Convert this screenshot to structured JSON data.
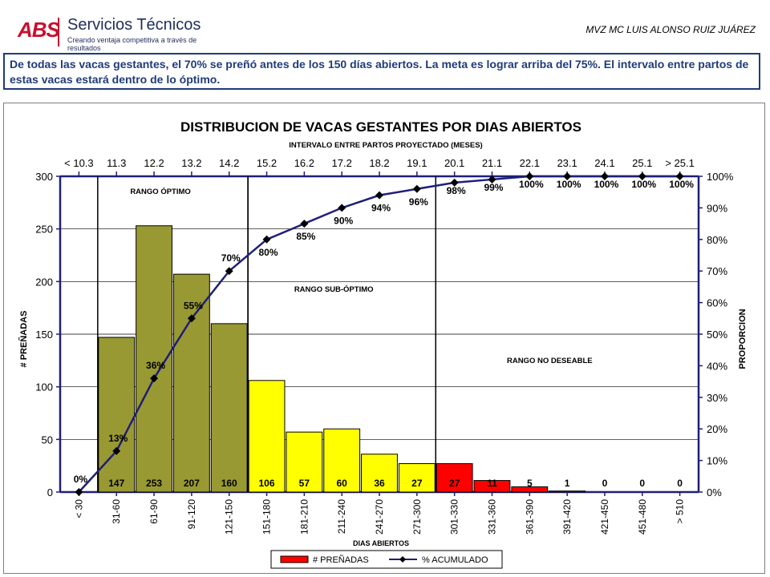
{
  "header": {
    "logo_abbr": "ABS",
    "logo_brand": "Servicios Técnicos",
    "logo_tagline": "Creando ventaja competitiva a través de resultados",
    "author": "MVZ MC LUIS ALONSO RUIZ JUÁREZ"
  },
  "note": "De todas las vacas gestantes, el 70% se preñó antes de los 150 días abiertos. La meta es lograr arriba del 75%. El intervalo entre partos de estas vacas estará dentro de lo óptimo.",
  "chart_data": {
    "type": "bar",
    "title": "DISTRIBUCION DE VACAS GESTANTES POR DIAS ABIERTOS",
    "subtitle": "INTERVALO ENTRE PARTOS PROYECTADO (MESES)",
    "xlabel": "DIAS ABIERTOS",
    "ylabel_left": "# PREÑADAS",
    "ylabel_right": "PROPORCION",
    "ylim_left": [
      0,
      300
    ],
    "yticks_left": [
      "0",
      "50",
      "100",
      "150",
      "200",
      "250",
      "300"
    ],
    "ylim_right": [
      0,
      1
    ],
    "yticks_right": [
      "0%",
      "10%",
      "20%",
      "30%",
      "40%",
      "50%",
      "60%",
      "70%",
      "80%",
      "90%",
      "100%"
    ],
    "categories": [
      "< 30",
      "31-60",
      "61-90",
      "91-120",
      "121-150",
      "151-180",
      "181-210",
      "211-240",
      "241-270",
      "271-300",
      "301-330",
      "331-360",
      "361-390",
      "391-420",
      "421-450",
      "451-480",
      "> 510"
    ],
    "months": [
      "< 10.3",
      "11.3",
      "12.2",
      "13.2",
      "14.2",
      "15.2",
      "16.2",
      "17.2",
      "18.2",
      "19.1",
      "20.1",
      "21.1",
      "22.1",
      "23.1",
      "24.1",
      "25.1",
      "> 25.1"
    ],
    "series": [
      {
        "name": "# PREÑADAS",
        "type": "bar",
        "values": [
          0,
          147,
          253,
          207,
          160,
          106,
          57,
          60,
          36,
          27,
          27,
          11,
          5,
          1,
          0,
          0,
          0
        ],
        "value_labels": [
          "",
          "147",
          "253",
          "207",
          "160",
          "106",
          "57",
          "60",
          "36",
          "27",
          "27",
          "11",
          "5",
          "1",
          "0",
          "0",
          "0"
        ],
        "colors": [
          "#999933",
          "#999933",
          "#999933",
          "#999933",
          "#999933",
          "#ffff00",
          "#ffff00",
          "#ffff00",
          "#ffff00",
          "#ffff00",
          "#ff0000",
          "#ff0000",
          "#ff0000",
          "#ff0000",
          "#ff0000",
          "#ff0000",
          "#ff0000"
        ]
      },
      {
        "name": "% ACUMULADO",
        "type": "line",
        "values": [
          0,
          0.13,
          0.36,
          0.55,
          0.7,
          0.8,
          0.85,
          0.9,
          0.94,
          0.96,
          0.98,
          0.99,
          1.0,
          1.0,
          1.0,
          1.0,
          1.0
        ],
        "value_labels": [
          "0%",
          "13%",
          "36%",
          "55%",
          "70%",
          "80%",
          "85%",
          "90%",
          "94%",
          "96%",
          "98%",
          "99%",
          "100%",
          "100%",
          "100%",
          "100%",
          "100%"
        ],
        "color": "#1f1f7a"
      }
    ],
    "zones": [
      {
        "label": "RANGO ÓPTIMO",
        "from": 1,
        "to": 4
      },
      {
        "label": "RANGO SUB-ÓPTIMO",
        "from": 5,
        "to": 9
      },
      {
        "label": "RANGO NO DESEABLE",
        "from": 10,
        "to": 16
      }
    ],
    "grid": true,
    "legend": "bottom"
  }
}
